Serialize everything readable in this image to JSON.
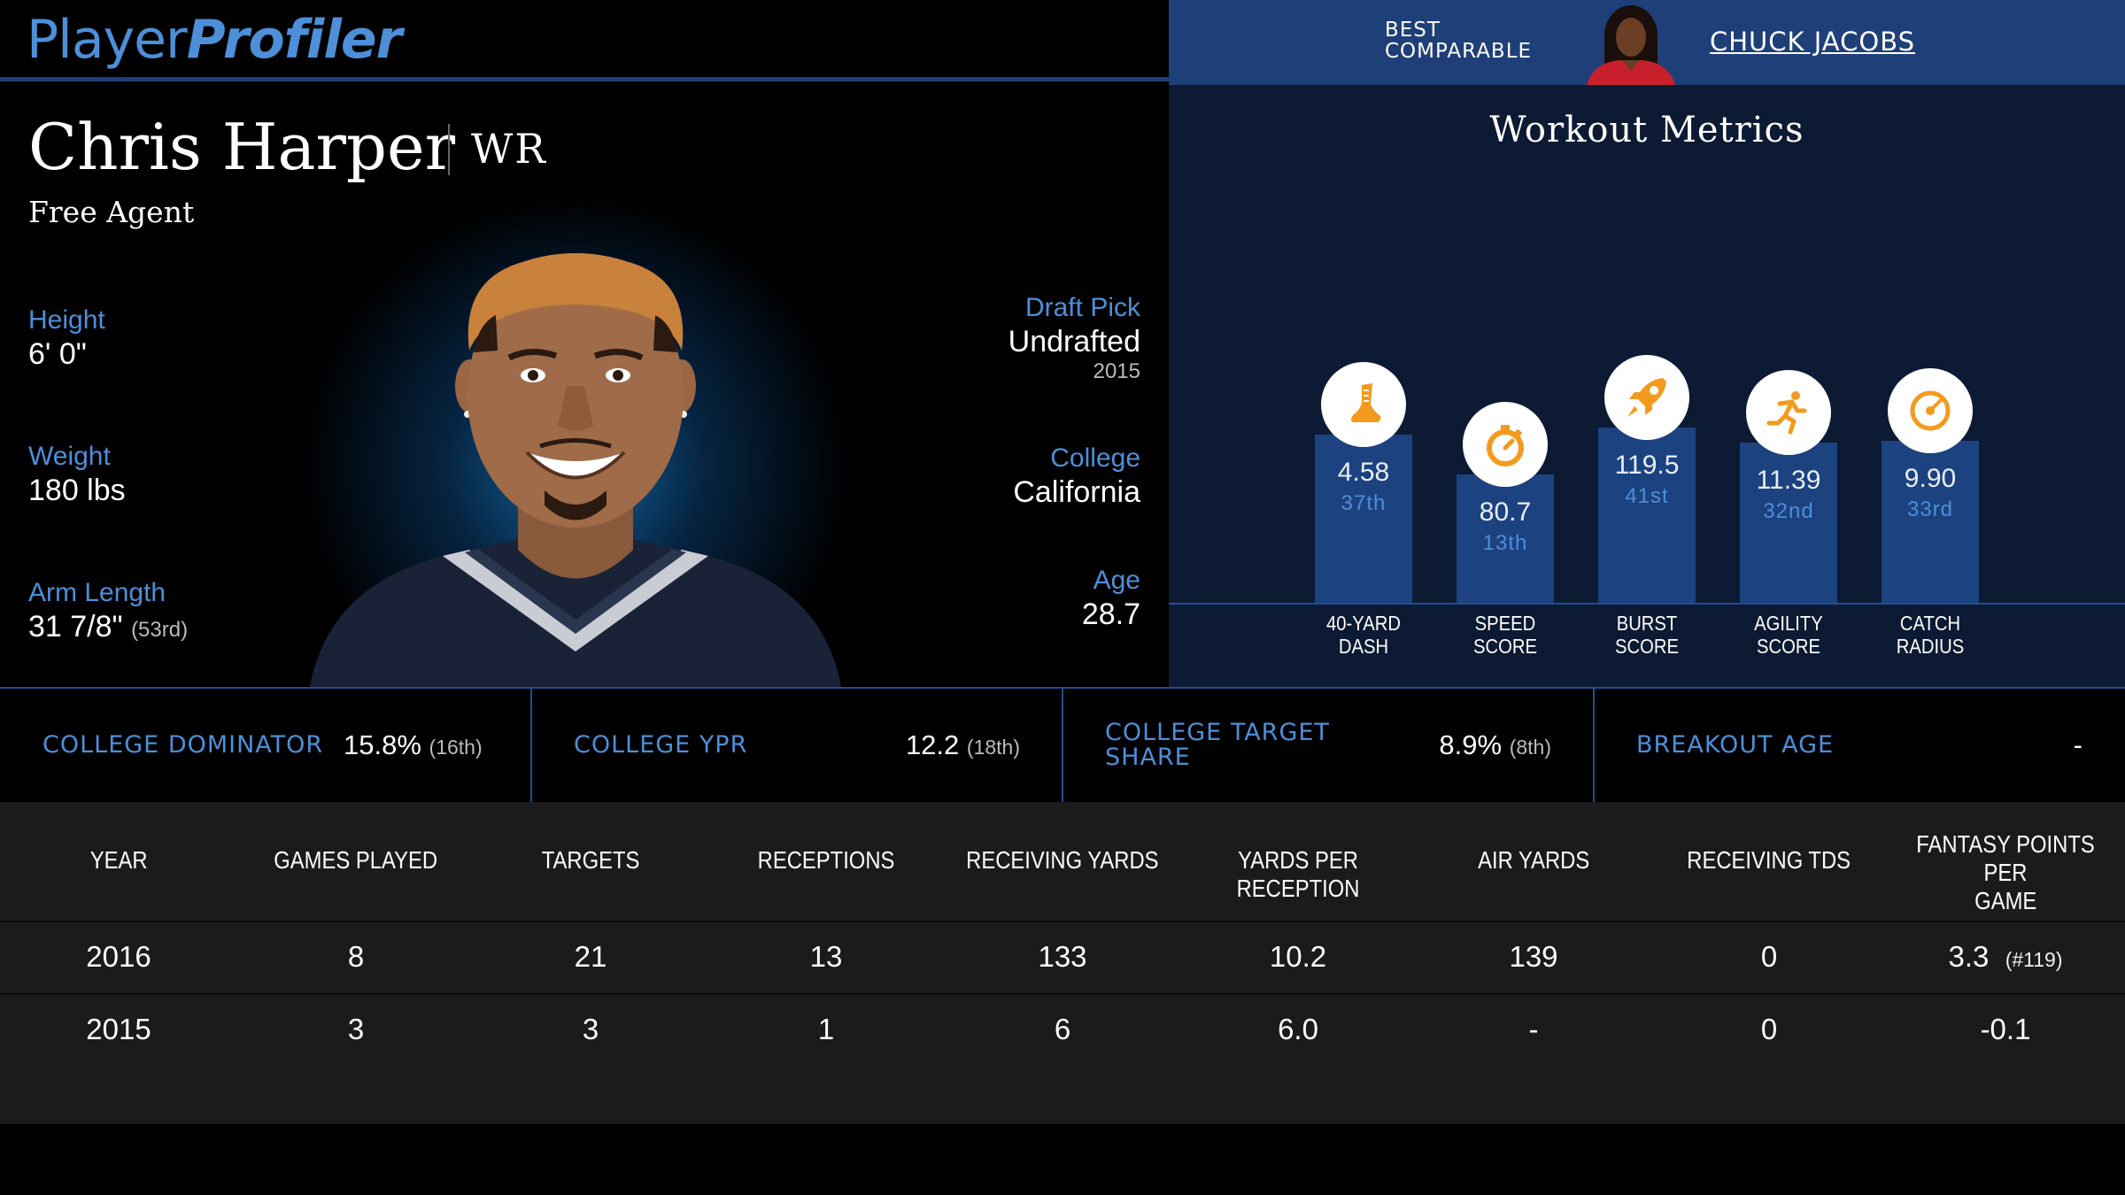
{
  "header": {
    "logo_regular": "Player",
    "logo_bold": "Profiler",
    "best_comparable_line1": "BEST",
    "best_comparable_line2": "COMPARABLE",
    "best_comparable_name": "CHUCK JACOBS"
  },
  "player": {
    "name": "Chris Harper",
    "position": "WR",
    "team": "Free Agent",
    "height_label": "Height",
    "height_value": "6' 0\"",
    "weight_label": "Weight",
    "weight_value": "180 lbs",
    "arm_label": "Arm Length",
    "arm_value": "31 7/8\"",
    "arm_rank": "(53rd)",
    "draft_label": "Draft Pick",
    "draft_value": "Undrafted",
    "draft_year": "2015",
    "college_label": "College",
    "college_value": "California",
    "age_label": "Age",
    "age_value": "28.7"
  },
  "workout": {
    "title": "Workout Metrics",
    "metrics": [
      {
        "label1": "40-YARD",
        "label2": "DASH",
        "value": "4.58",
        "rank": "37th",
        "icon": "shoe-icon",
        "percentile": 37
      },
      {
        "label1": "SPEED",
        "label2": "SCORE",
        "value": "80.7",
        "rank": "13th",
        "icon": "stopwatch-icon",
        "percentile": 13
      },
      {
        "label1": "BURST",
        "label2": "SCORE",
        "value": "119.5",
        "rank": "41st",
        "icon": "rocket-icon",
        "percentile": 41
      },
      {
        "label1": "AGILITY",
        "label2": "SCORE",
        "value": "11.39",
        "rank": "32nd",
        "icon": "runner-icon",
        "percentile": 32
      },
      {
        "label1": "CATCH",
        "label2": "RADIUS",
        "value": "9.90",
        "rank": "33rd",
        "icon": "target-icon",
        "percentile": 33
      }
    ]
  },
  "college": [
    {
      "label": "COLLEGE DOMINATOR",
      "value": "15.8%",
      "rank": "(16th)"
    },
    {
      "label": "COLLEGE YPR",
      "value": "12.2",
      "rank": "(18th)"
    },
    {
      "label1": "COLLEGE TARGET",
      "label2": "SHARE",
      "value": "8.9%",
      "rank": "(8th)"
    },
    {
      "label": "BREAKOUT AGE",
      "value": "-",
      "rank": ""
    }
  ],
  "table": {
    "headers": [
      "YEAR",
      "GAMES PLAYED",
      "TARGETS",
      "RECEPTIONS",
      "RECEIVING YARDS",
      "YARDS PER RECEPTION",
      "AIR YARDS",
      "RECEIVING TDS",
      "FANTASY POINTS PER",
      "GAME"
    ],
    "rows": [
      {
        "year": "2016",
        "games": "8",
        "targets": "21",
        "receptions": "13",
        "yards": "133",
        "ypr": "10.2",
        "air": "139",
        "tds": "0",
        "fpts": "3.3",
        "fpts_rank": "(#119)"
      },
      {
        "year": "2015",
        "games": "3",
        "targets": "3",
        "receptions": "1",
        "yards": "6",
        "ypr": "6.0",
        "air": "-",
        "tds": "0",
        "fpts": "-0.1",
        "fpts_rank": ""
      }
    ]
  },
  "colors": {
    "accent_blue": "#4d8fd9",
    "header_blue": "#1f3f78",
    "workout_bg": "#0c1a33",
    "bar_blue": "#1c4280",
    "icon_orange": "#f39a1e",
    "table_bg": "#1b1b1b"
  }
}
